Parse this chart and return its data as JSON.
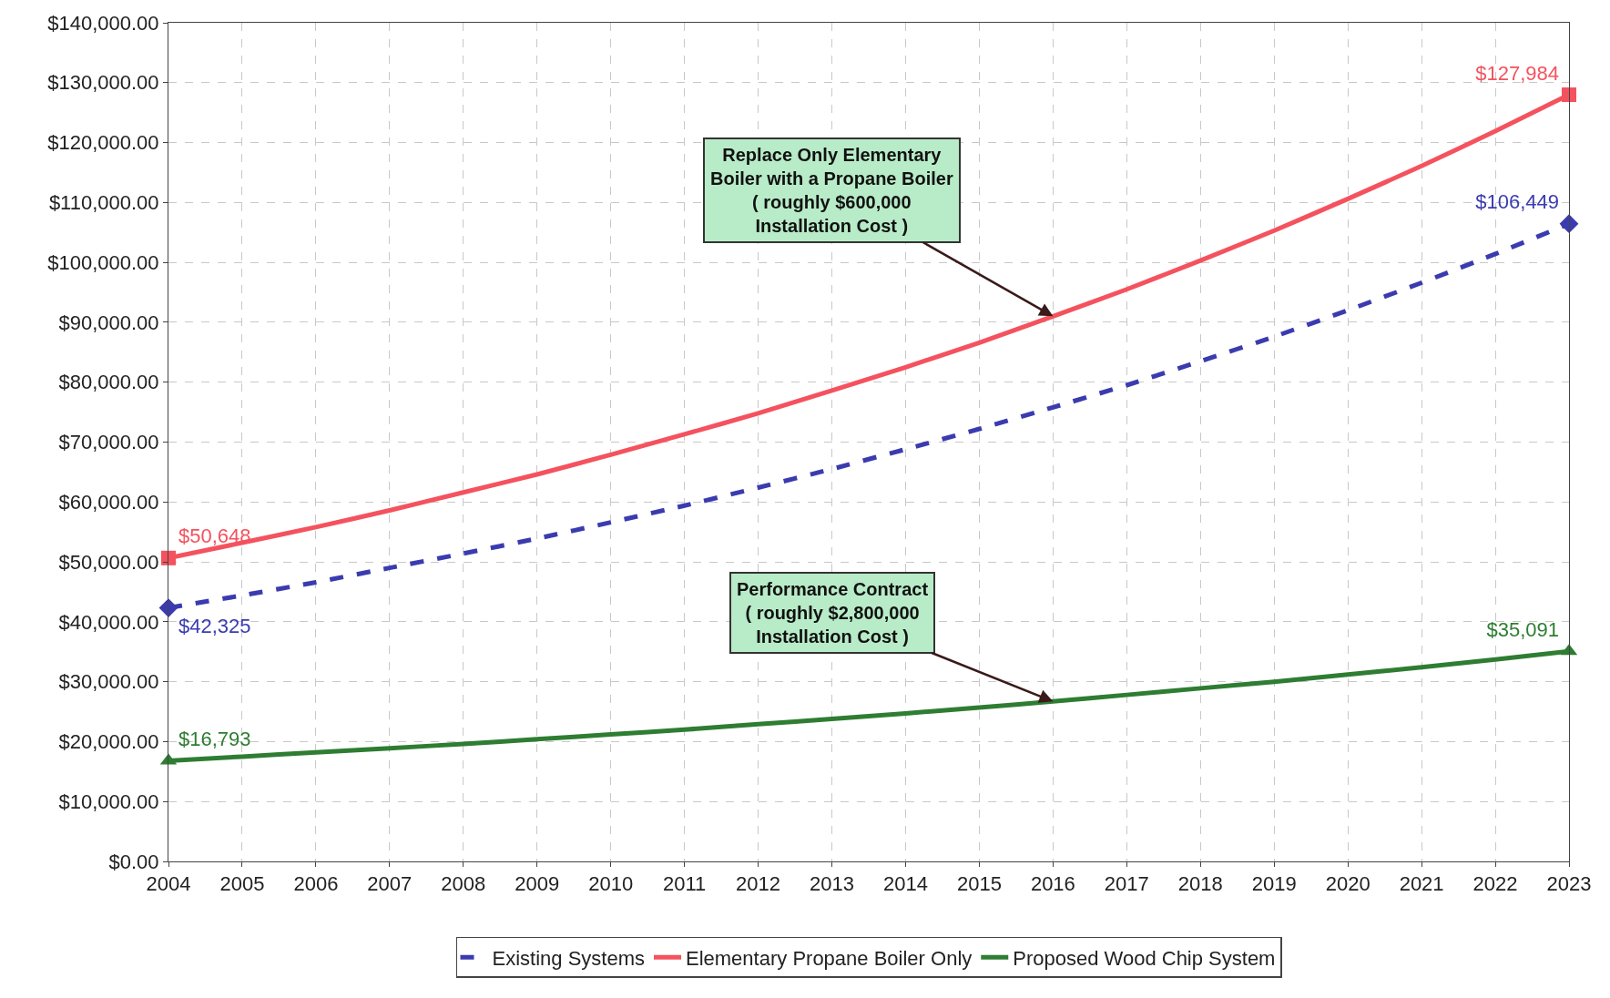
{
  "chart_data": {
    "type": "line",
    "x": [
      2004,
      2005,
      2006,
      2007,
      2008,
      2009,
      2010,
      2011,
      2012,
      2013,
      2014,
      2015,
      2016,
      2017,
      2018,
      2019,
      2020,
      2021,
      2022,
      2023
    ],
    "series": [
      {
        "name": "Existing Systems",
        "color": "#3b3bb0",
        "line_style": "dashed",
        "values": [
          42325,
          44400,
          46600,
          49000,
          51400,
          53900,
          56600,
          59400,
          62400,
          65500,
          68800,
          72200,
          75800,
          79500,
          83500,
          87600,
          92000,
          96600,
          101400,
          106449
        ],
        "value_labels": [
          "$42,325",
          null,
          null,
          null,
          null,
          null,
          null,
          null,
          null,
          null,
          null,
          null,
          null,
          null,
          null,
          null,
          null,
          null,
          null,
          "$106,449"
        ]
      },
      {
        "name": "Elementary Propane Boiler Only",
        "color": "#f4525e",
        "line_style": "solid",
        "values": [
          50648,
          53200,
          55800,
          58600,
          61600,
          64600,
          67900,
          71300,
          74800,
          78600,
          82500,
          86600,
          91000,
          95500,
          100300,
          105300,
          110600,
          116100,
          121900,
          127984
        ],
        "value_labels": [
          "$50,648",
          null,
          null,
          null,
          null,
          null,
          null,
          null,
          null,
          null,
          null,
          null,
          null,
          null,
          null,
          null,
          null,
          null,
          null,
          "$127,984"
        ]
      },
      {
        "name": "Proposed Wood Chip System",
        "color": "#2e7d32",
        "line_style": "solid",
        "values": [
          16793,
          17500,
          18200,
          18900,
          19600,
          20400,
          21200,
          22000,
          22900,
          23800,
          24700,
          25700,
          26700,
          27800,
          28900,
          30000,
          31200,
          32400,
          33700,
          35091
        ],
        "value_labels": [
          "$16,793",
          null,
          null,
          null,
          null,
          null,
          null,
          null,
          null,
          null,
          null,
          null,
          null,
          null,
          null,
          null,
          null,
          null,
          null,
          "$35,091"
        ]
      }
    ],
    "annotations": [
      {
        "text": "Replace Only Elementary\nBoiler with a Propane Boiler\n( roughly $600,000\nInstallation Cost )",
        "x": 2016,
        "y": 91000
      },
      {
        "text": "Performance Contract\n( roughly $2,800,000\nInstallation Cost )",
        "x": 2016,
        "y": 26700
      }
    ],
    "xlim": [
      2004,
      2023
    ],
    "xticks": [
      2004,
      2005,
      2006,
      2007,
      2008,
      2009,
      2010,
      2011,
      2012,
      2013,
      2014,
      2015,
      2016,
      2017,
      2018,
      2019,
      2020,
      2021,
      2022,
      2023
    ],
    "ylim": [
      0,
      140000
    ],
    "yticks": [
      {
        "value": 0,
        "label": "$0.00"
      },
      {
        "value": 10000,
        "label": "$10,000.00"
      },
      {
        "value": 20000,
        "label": "$20,000.00"
      },
      {
        "value": 30000,
        "label": "$30,000.00"
      },
      {
        "value": 40000,
        "label": "$40,000.00"
      },
      {
        "value": 50000,
        "label": "$50,000.00"
      },
      {
        "value": 60000,
        "label": "$60,000.00"
      },
      {
        "value": 70000,
        "label": "$70,000.00"
      },
      {
        "value": 80000,
        "label": "$80,000.00"
      },
      {
        "value": 90000,
        "label": "$90,000.00"
      },
      {
        "value": 100000,
        "label": "$100,000.00"
      },
      {
        "value": 110000,
        "label": "$110,000.00"
      },
      {
        "value": 120000,
        "label": "$120,000.00"
      },
      {
        "value": 130000,
        "label": "$130,000.00"
      },
      {
        "value": 140000,
        "label": "$140,000.00"
      }
    ],
    "grid": true,
    "legend": "bottom"
  }
}
